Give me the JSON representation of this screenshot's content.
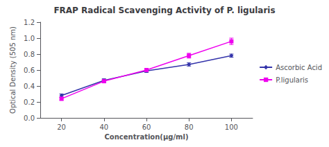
{
  "chart_data": {
    "type": "line",
    "title": "FRAP Radical Scavenging Activity of P. ligularis",
    "xlabel": "Concentration(µg/ml)",
    "ylabel": "Optical Density (505 nm)",
    "x": [
      20,
      40,
      60,
      80,
      100
    ],
    "series": [
      {
        "name": "Ascorbic Acid",
        "color": "#3333aa",
        "marker": "diamond",
        "values": [
          0.28,
          0.47,
          0.59,
          0.67,
          0.78
        ],
        "yerr": [
          0.02,
          0.02,
          0.02,
          0.02,
          0.02
        ]
      },
      {
        "name": "P.ligularis",
        "color": "#ee00ee",
        "marker": "square",
        "values": [
          0.24,
          0.46,
          0.6,
          0.78,
          0.96
        ],
        "yerr": [
          0.02,
          0.02,
          0.02,
          0.03,
          0.04
        ]
      }
    ],
    "xlim": [
      10,
      110
    ],
    "xticks": [
      20,
      40,
      60,
      80,
      100
    ],
    "ylim": [
      0,
      1.2
    ],
    "yticks": [
      {
        "value": 0,
        "label": "0.0"
      },
      0.2,
      0.4,
      0.6,
      0.8,
      {
        "value": 1.0,
        "label": "1.0"
      },
      1.2
    ],
    "grid": false,
    "legend": "right"
  }
}
